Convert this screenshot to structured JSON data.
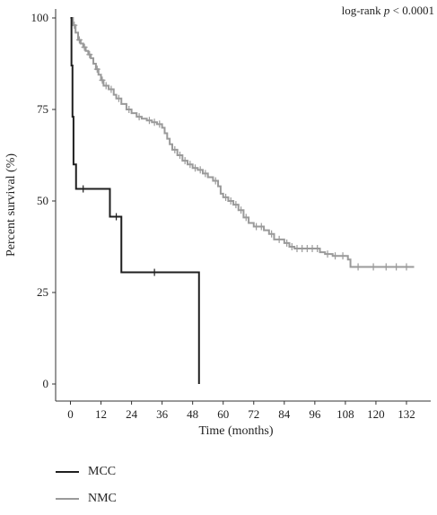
{
  "chart_data": {
    "type": "line",
    "subtype": "kaplan-meier",
    "title": "",
    "xlabel": "Time (months)",
    "ylabel": "Percent survival (%)",
    "xlim": [
      -3,
      138
    ],
    "ylim": [
      0,
      100
    ],
    "x_ticks": [
      0,
      12,
      24,
      36,
      48,
      60,
      72,
      84,
      96,
      108,
      120,
      132
    ],
    "y_ticks": [
      0,
      25,
      50,
      75,
      100
    ],
    "annotation": {
      "prefix": "log-rank ",
      "italic": "p",
      "suffix": " < 0.0001"
    },
    "legend_position": "bottom-left",
    "grid": false,
    "series": [
      {
        "name": "MCC",
        "color": "#1f1f1f",
        "steps": [
          [
            0,
            100
          ],
          [
            0.4,
            87
          ],
          [
            0.8,
            73
          ],
          [
            1.2,
            60
          ],
          [
            2.2,
            53.3
          ],
          [
            15.5,
            45.7
          ],
          [
            20,
            30.5
          ],
          [
            50.5,
            30.5
          ],
          [
            50.5,
            0
          ]
        ],
        "censored": [
          [
            5,
            53.3
          ],
          [
            18,
            45.7
          ],
          [
            33,
            30.5
          ]
        ]
      },
      {
        "name": "NMC",
        "color": "#9a9a9a",
        "steps": [
          [
            0,
            100
          ],
          [
            1,
            98
          ],
          [
            2,
            96
          ],
          [
            3,
            94
          ],
          [
            4,
            93
          ],
          [
            5,
            92
          ],
          [
            6,
            91
          ],
          [
            7,
            90
          ],
          [
            8,
            89
          ],
          [
            9,
            87.5
          ],
          [
            10,
            86
          ],
          [
            11,
            84.5
          ],
          [
            12,
            83
          ],
          [
            13,
            81.5
          ],
          [
            15,
            80.5
          ],
          [
            17,
            79
          ],
          [
            18,
            78
          ],
          [
            20,
            76.5
          ],
          [
            22,
            75
          ],
          [
            24,
            74
          ],
          [
            26,
            73
          ],
          [
            28,
            72.5
          ],
          [
            30,
            72
          ],
          [
            32,
            71.5
          ],
          [
            34,
            71
          ],
          [
            36,
            70
          ],
          [
            37,
            68.5
          ],
          [
            38,
            67
          ],
          [
            39,
            65.5
          ],
          [
            40,
            64
          ],
          [
            42,
            62.5
          ],
          [
            44,
            61
          ],
          [
            46,
            60
          ],
          [
            48,
            59
          ],
          [
            50,
            58.5
          ],
          [
            52,
            57.5
          ],
          [
            54,
            56.5
          ],
          [
            56,
            55.5
          ],
          [
            58,
            54
          ],
          [
            59,
            52
          ],
          [
            60,
            51
          ],
          [
            62,
            50
          ],
          [
            64,
            49
          ],
          [
            66,
            47.5
          ],
          [
            68,
            45.5
          ],
          [
            70,
            44
          ],
          [
            72,
            43
          ],
          [
            76,
            42
          ],
          [
            78,
            41
          ],
          [
            80,
            39.5
          ],
          [
            84,
            38.5
          ],
          [
            86,
            37.5
          ],
          [
            88,
            37
          ],
          [
            96,
            37
          ],
          [
            98,
            36
          ],
          [
            100,
            35.5
          ],
          [
            103,
            35
          ],
          [
            106,
            35
          ],
          [
            109,
            34
          ],
          [
            110,
            32
          ],
          [
            135,
            32
          ]
        ],
        "censored": [
          [
            1.5,
            98
          ],
          [
            3.5,
            94
          ],
          [
            5.5,
            92
          ],
          [
            7.5,
            90
          ],
          [
            10.5,
            86
          ],
          [
            12.5,
            83
          ],
          [
            14,
            81.5
          ],
          [
            16,
            80.5
          ],
          [
            19,
            78
          ],
          [
            23,
            75
          ],
          [
            27,
            73
          ],
          [
            31,
            72
          ],
          [
            33,
            71.5
          ],
          [
            35,
            71
          ],
          [
            41,
            64
          ],
          [
            43,
            62.5
          ],
          [
            45,
            61
          ],
          [
            47,
            60
          ],
          [
            49,
            59
          ],
          [
            51,
            58.5
          ],
          [
            53,
            57.5
          ],
          [
            57,
            55.5
          ],
          [
            61,
            51
          ],
          [
            63,
            50
          ],
          [
            65,
            49
          ],
          [
            67,
            47.5
          ],
          [
            69,
            45.5
          ],
          [
            73,
            43
          ],
          [
            75,
            43
          ],
          [
            79,
            41
          ],
          [
            82,
            39.5
          ],
          [
            85,
            38.5
          ],
          [
            87,
            37.5
          ],
          [
            89,
            37
          ],
          [
            91,
            37
          ],
          [
            93,
            37
          ],
          [
            95,
            37
          ],
          [
            97,
            37
          ],
          [
            101,
            35.5
          ],
          [
            104,
            35
          ],
          [
            107,
            35
          ],
          [
            113,
            32
          ],
          [
            119,
            32
          ],
          [
            124,
            32
          ],
          [
            128,
            32
          ],
          [
            132,
            32
          ]
        ]
      }
    ]
  }
}
